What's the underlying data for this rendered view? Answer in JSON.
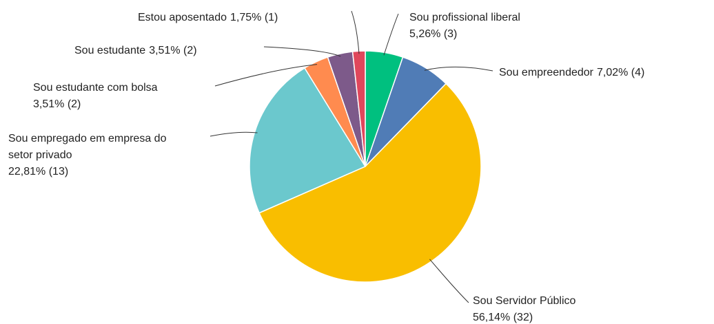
{
  "chart_data": {
    "type": "pie",
    "categories": [
      "Sou profissional liberal",
      "Sou empreendedor",
      "Sou Servidor Público",
      "Sou empregado em empresa do setor privado",
      "Sou estudante com bolsa",
      "Sou estudante",
      "Estou aposentado"
    ],
    "values": [
      5.26,
      7.02,
      56.14,
      22.81,
      3.51,
      3.51,
      1.75
    ],
    "value_labels": [
      "5,26% (3)",
      "7,02% (4)",
      "56,14% (32)",
      "22,81% (13)",
      "3,51% (2)",
      "3,51% (2)",
      "1,75% (1)"
    ],
    "colors": [
      "#00c07f",
      "#507cb6",
      "#f9be00",
      "#6bc8cd",
      "#ff8b4f",
      "#7d5a8a",
      "#e0475c"
    ]
  }
}
